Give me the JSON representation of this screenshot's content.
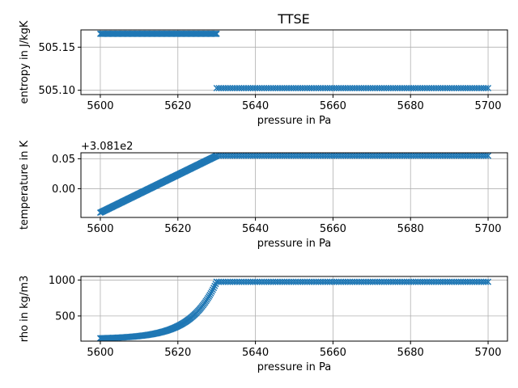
{
  "chart_data": [
    {
      "type": "scatter",
      "title": "TTSE",
      "xlabel": "pressure in Pa",
      "ylabel": "entropy in J/kgK",
      "xlim": [
        5595,
        5705
      ],
      "ylim": [
        505.095,
        505.17
      ],
      "xticks": [
        5600,
        5620,
        5640,
        5660,
        5680,
        5700
      ],
      "xtick_labels": [
        "5600",
        "5620",
        "5640",
        "5660",
        "5680",
        "5700"
      ],
      "yticks": [
        505.1,
        505.15
      ],
      "ytick_labels": [
        "505.10",
        "505.15"
      ],
      "offset_text": "",
      "grid": true,
      "marker": "x",
      "color": "#1f77b4",
      "segments": [
        {
          "x_start": 5600,
          "x_end": 5630,
          "y_start": 505.1655,
          "y_end": 505.1655,
          "shape": "linear"
        },
        {
          "x_start": 5630,
          "x_end": 5700,
          "y_start": 505.1025,
          "y_end": 505.1025,
          "shape": "linear"
        }
      ]
    },
    {
      "type": "scatter",
      "title": "",
      "xlabel": "pressure in Pa",
      "ylabel": "temperature in K",
      "xlim": [
        5595,
        5705
      ],
      "ylim": [
        -0.048,
        0.06
      ],
      "xticks": [
        5600,
        5620,
        5640,
        5660,
        5680,
        5700
      ],
      "xtick_labels": [
        "5600",
        "5620",
        "5640",
        "5660",
        "5680",
        "5700"
      ],
      "yticks": [
        0.0,
        0.05
      ],
      "ytick_labels": [
        "0.00",
        "0.05"
      ],
      "offset_text": "+3.081e2",
      "grid": true,
      "marker": "x",
      "color": "#1f77b4",
      "segments": [
        {
          "x_start": 5600,
          "x_end": 5630,
          "y_start": -0.04,
          "y_end": 0.055,
          "shape": "linear"
        },
        {
          "x_start": 5630,
          "x_end": 5700,
          "y_start": 0.055,
          "y_end": 0.055,
          "shape": "linear"
        }
      ]
    },
    {
      "type": "scatter",
      "title": "",
      "xlabel": "pressure in Pa",
      "ylabel": "rho in kg/m3",
      "xlim": [
        5595,
        5705
      ],
      "ylim": [
        150,
        1050
      ],
      "xticks": [
        5600,
        5620,
        5640,
        5660,
        5680,
        5700
      ],
      "xtick_labels": [
        "5600",
        "5620",
        "5640",
        "5660",
        "5680",
        "5700"
      ],
      "yticks": [
        500,
        1000
      ],
      "ytick_labels": [
        "500",
        "1000"
      ],
      "offset_text": "",
      "grid": true,
      "marker": "x",
      "color": "#1f77b4",
      "segments": [
        {
          "x_start": 5600,
          "x_end": 5630,
          "y_start": 190,
          "y_end": 975,
          "shape": "exponential"
        },
        {
          "x_start": 5630,
          "x_end": 5700,
          "y_start": 975,
          "y_end": 975,
          "shape": "linear"
        }
      ]
    }
  ]
}
